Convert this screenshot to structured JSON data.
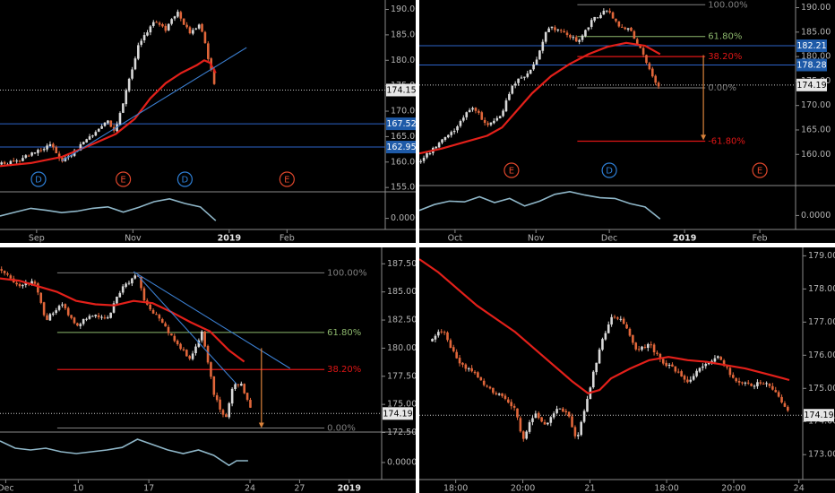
{
  "colors": {
    "background": "#000000",
    "candle_up": "#d9d9d9",
    "candle_down": "#e0663a",
    "ma": "#e3201a",
    "trendline": "#3b7fd1",
    "hline_blue": "#2c63c9",
    "hline_red": "#e01616",
    "fib_gray": "#7f7f7f",
    "fib_green": "#8db86d",
    "fib_red": "#e01616",
    "arrow": "#d9823b",
    "oscillator": "#8fb7c9",
    "axis_text": "#b3b3b3",
    "tag_blue": "#1e5aa8",
    "tag_gray": "#333333",
    "d_marker": "#2e7fd6",
    "e_marker": "#e0472c"
  },
  "chart_data": [
    {
      "panel": "top-left",
      "type": "candlestick",
      "x_tick_labels": [
        "Sep",
        "Nov",
        "2019",
        "Feb"
      ],
      "x_ticks": [
        0.095,
        0.345,
        0.595,
        0.745
      ],
      "y_axis": {
        "ylim": [
          154.5,
          191.5
        ],
        "tick_labels": [
          "155.00",
          "160.00",
          "165.00",
          "170.00",
          "175.00",
          "180.00",
          "185.00",
          "190.00"
        ],
        "ticks": [
          155,
          160,
          165,
          170,
          175,
          180,
          185,
          190
        ]
      },
      "candle_span": [
        0,
        0.56
      ],
      "close_path": [
        [
          0,
          159.5
        ],
        [
          0.05,
          160.5
        ],
        [
          0.09,
          162.0
        ],
        [
          0.13,
          163.5
        ],
        [
          0.16,
          160.0
        ],
        [
          0.2,
          162.5
        ],
        [
          0.24,
          165.5
        ],
        [
          0.28,
          168.0
        ],
        [
          0.3,
          166.0
        ],
        [
          0.33,
          175.0
        ],
        [
          0.36,
          183.0
        ],
        [
          0.4,
          187.5
        ],
        [
          0.43,
          186.0
        ],
        [
          0.46,
          189.5
        ],
        [
          0.49,
          185.5
        ],
        [
          0.52,
          187.0
        ],
        [
          0.545,
          179.0
        ],
        [
          0.56,
          174.2
        ]
      ],
      "ma": [
        [
          0,
          159.2
        ],
        [
          0.08,
          159.8
        ],
        [
          0.16,
          161.0
        ],
        [
          0.24,
          163.5
        ],
        [
          0.3,
          165.5
        ],
        [
          0.35,
          168.5
        ],
        [
          0.39,
          172.5
        ],
        [
          0.43,
          175.5
        ],
        [
          0.47,
          177.5
        ],
        [
          0.51,
          179.0
        ],
        [
          0.53,
          180.0
        ],
        [
          0.545,
          179.5
        ],
        [
          0.56,
          177.5
        ]
      ],
      "trendlines": [
        [
          [
            0.16,
            160.2
          ],
          [
            0.64,
            182.5
          ]
        ]
      ],
      "hlines": [
        {
          "value": 167.52,
          "label": "167.52",
          "style": "blue"
        },
        {
          "value": 162.95,
          "label": "162.95",
          "style": "blue"
        },
        {
          "value": 174.15,
          "label": "174.15",
          "style": "dotted"
        }
      ],
      "events": [
        {
          "x": 0.1,
          "label": "D",
          "kind": "dividend"
        },
        {
          "x": 0.32,
          "label": "E",
          "kind": "earnings"
        },
        {
          "x": 0.48,
          "label": "D",
          "kind": "dividend"
        },
        {
          "x": 0.745,
          "label": "E",
          "kind": "earnings"
        }
      ],
      "oscillator": {
        "value_label": "0.0000",
        "value": 0.0,
        "points": [
          [
            0,
            0.28
          ],
          [
            0.04,
            0.42
          ],
          [
            0.08,
            0.55
          ],
          [
            0.12,
            0.48
          ],
          [
            0.16,
            0.4
          ],
          [
            0.2,
            0.45
          ],
          [
            0.24,
            0.55
          ],
          [
            0.28,
            0.6
          ],
          [
            0.32,
            0.42
          ],
          [
            0.36,
            0.58
          ],
          [
            0.4,
            0.78
          ],
          [
            0.44,
            0.88
          ],
          [
            0.48,
            0.72
          ],
          [
            0.52,
            0.6
          ],
          [
            0.56,
            0.12
          ]
        ]
      }
    },
    {
      "panel": "top-right",
      "type": "candlestick",
      "x_tick_labels": [
        "Oct",
        "Nov",
        "Dec",
        "2019",
        "Feb"
      ],
      "x_ticks": [
        0.095,
        0.31,
        0.505,
        0.705,
        0.905
      ],
      "y_axis": {
        "ylim": [
          154.0,
          191.2
        ],
        "tick_labels": [
          "160.00",
          "165.00",
          "170.00",
          "175.00",
          "180.00",
          "185.00",
          "190.00"
        ],
        "ticks": [
          160,
          165,
          170,
          175,
          180,
          185,
          190
        ]
      },
      "candle_span": [
        0,
        0.64
      ],
      "close_path": [
        [
          0,
          158.5
        ],
        [
          0.05,
          162.0
        ],
        [
          0.1,
          165.5
        ],
        [
          0.14,
          170.0
        ],
        [
          0.18,
          166.0
        ],
        [
          0.22,
          168.5
        ],
        [
          0.25,
          174.5
        ],
        [
          0.28,
          176.0
        ],
        [
          0.31,
          179.0
        ],
        [
          0.34,
          186.0
        ],
        [
          0.38,
          185.5
        ],
        [
          0.42,
          183.0
        ],
        [
          0.46,
          187.5
        ],
        [
          0.5,
          189.5
        ],
        [
          0.53,
          186.5
        ],
        [
          0.56,
          185.5
        ],
        [
          0.6,
          179.5
        ],
        [
          0.63,
          174.2
        ]
      ],
      "ma": [
        [
          0,
          160.2
        ],
        [
          0.06,
          161.2
        ],
        [
          0.12,
          162.5
        ],
        [
          0.18,
          163.8
        ],
        [
          0.22,
          165.5
        ],
        [
          0.26,
          169.0
        ],
        [
          0.3,
          172.5
        ],
        [
          0.35,
          176.0
        ],
        [
          0.4,
          178.5
        ],
        [
          0.45,
          180.5
        ],
        [
          0.5,
          182.0
        ],
        [
          0.55,
          182.8
        ],
        [
          0.6,
          182.2
        ],
        [
          0.64,
          180.5
        ]
      ],
      "trendlines": [],
      "hlines": [
        {
          "value": 182.21,
          "label": "182.21",
          "style": "blue"
        },
        {
          "value": 178.28,
          "label": "178.28",
          "style": "blue"
        },
        {
          "value": 174.19,
          "label": "174.19",
          "style": "dotted"
        }
      ],
      "fib_levels": [
        {
          "value": 190.6,
          "label": "100.00%",
          "style": "gray"
        },
        {
          "value": 184.1,
          "label": "61.80%",
          "style": "green"
        },
        {
          "value": 180.0,
          "label": "38.20%",
          "style": "red"
        },
        {
          "value": 173.6,
          "label": "0.00%",
          "style": "gray"
        },
        {
          "value": 162.7,
          "label": "-61.80%",
          "style": "red"
        }
      ],
      "projection_arrow": {
        "from": 180.3,
        "to": 162.9
      },
      "events": [
        {
          "x": 0.245,
          "label": "E",
          "kind": "earnings"
        },
        {
          "x": 0.505,
          "label": "D",
          "kind": "dividend"
        },
        {
          "x": 0.905,
          "label": "E",
          "kind": "earnings"
        }
      ],
      "oscillator": {
        "value_label": "0.0000",
        "value": 0.0,
        "points": [
          [
            0,
            0.35
          ],
          [
            0.04,
            0.52
          ],
          [
            0.08,
            0.62
          ],
          [
            0.12,
            0.6
          ],
          [
            0.16,
            0.75
          ],
          [
            0.2,
            0.58
          ],
          [
            0.24,
            0.7
          ],
          [
            0.28,
            0.48
          ],
          [
            0.32,
            0.62
          ],
          [
            0.36,
            0.82
          ],
          [
            0.4,
            0.9
          ],
          [
            0.44,
            0.8
          ],
          [
            0.48,
            0.72
          ],
          [
            0.52,
            0.7
          ],
          [
            0.56,
            0.55
          ],
          [
            0.6,
            0.45
          ],
          [
            0.64,
            0.1
          ]
        ]
      }
    },
    {
      "panel": "bottom-left",
      "type": "candlestick",
      "x_tick_labels": [
        "Dec",
        "10",
        "17",
        "24",
        "27",
        "2019"
      ],
      "x_ticks": [
        0.015,
        0.205,
        0.39,
        0.655,
        0.785,
        0.915
      ],
      "y_axis": {
        "ylim": [
          172.7,
          188.8
        ],
        "tick_labels": [
          "172.50",
          "175.00",
          "177.50",
          "180.00",
          "182.50",
          "185.00",
          "187.50"
        ],
        "ticks": [
          172.5,
          175.0,
          177.5,
          180.0,
          182.5,
          185.0,
          187.5
        ]
      },
      "candle_span": [
        0,
        0.66
      ],
      "close_path": [
        [
          0,
          187.0
        ],
        [
          0.05,
          185.5
        ],
        [
          0.09,
          186.0
        ],
        [
          0.12,
          182.5
        ],
        [
          0.16,
          184.0
        ],
        [
          0.2,
          182.0
        ],
        [
          0.24,
          183.0
        ],
        [
          0.28,
          182.5
        ],
        [
          0.32,
          185.5
        ],
        [
          0.36,
          186.5
        ],
        [
          0.38,
          184.0
        ],
        [
          0.42,
          182.5
        ],
        [
          0.46,
          180.5
        ],
        [
          0.5,
          179.0
        ],
        [
          0.53,
          181.5
        ],
        [
          0.56,
          176.0
        ],
        [
          0.59,
          173.5
        ],
        [
          0.61,
          176.5
        ],
        [
          0.63,
          177.0
        ],
        [
          0.66,
          174.2
        ]
      ],
      "ma": [
        [
          0,
          186.2
        ],
        [
          0.05,
          186.0
        ],
        [
          0.1,
          185.5
        ],
        [
          0.15,
          185.0
        ],
        [
          0.2,
          184.2
        ],
        [
          0.25,
          183.9
        ],
        [
          0.3,
          183.8
        ],
        [
          0.35,
          184.2
        ],
        [
          0.4,
          184.0
        ],
        [
          0.45,
          183.2
        ],
        [
          0.5,
          182.3
        ],
        [
          0.55,
          181.5
        ],
        [
          0.6,
          179.8
        ],
        [
          0.64,
          178.8
        ]
      ],
      "trendlines": [
        [
          [
            0.35,
            186.8
          ],
          [
            0.76,
            178.2
          ]
        ],
        [
          [
            0.36,
            186.5
          ],
          [
            0.62,
            176.8
          ]
        ]
      ],
      "hlines": [
        {
          "value": 174.19,
          "label": "174.19",
          "style": "dotted"
        }
      ],
      "fib_levels": [
        {
          "value": 186.7,
          "label": "100.00%",
          "style": "gray"
        },
        {
          "value": 181.4,
          "label": "61.80%",
          "style": "green"
        },
        {
          "value": 178.1,
          "label": "38.20%",
          "style": "red"
        },
        {
          "value": 172.9,
          "label": "0.00%",
          "style": "gray"
        }
      ],
      "projection_arrow": {
        "from": 180.0,
        "to": 172.9
      },
      "events": [],
      "oscillator": {
        "value_label": "0.0000",
        "value": 0.0,
        "points": [
          [
            0,
            0.8
          ],
          [
            0.04,
            0.6
          ],
          [
            0.08,
            0.55
          ],
          [
            0.12,
            0.6
          ],
          [
            0.16,
            0.5
          ],
          [
            0.2,
            0.45
          ],
          [
            0.24,
            0.5
          ],
          [
            0.28,
            0.55
          ],
          [
            0.32,
            0.62
          ],
          [
            0.36,
            0.85
          ],
          [
            0.4,
            0.7
          ],
          [
            0.44,
            0.55
          ],
          [
            0.48,
            0.45
          ],
          [
            0.52,
            0.55
          ],
          [
            0.56,
            0.4
          ],
          [
            0.6,
            0.12
          ],
          [
            0.62,
            0.25
          ],
          [
            0.65,
            0.25
          ]
        ]
      }
    },
    {
      "panel": "bottom-right",
      "type": "candlestick",
      "x_tick_labels": [
        "18:00",
        "20:00",
        "21",
        "18:00",
        "20:00",
        "24"
      ],
      "x_ticks": [
        0.095,
        0.27,
        0.445,
        0.645,
        0.82,
        0.99
      ],
      "y_axis": {
        "ylim": [
          172.6,
          179.2
        ],
        "tick_labels": [
          "173.00",
          "174.00",
          "175.00",
          "176.00",
          "177.00",
          "178.00",
          "179.00"
        ],
        "ticks": [
          173,
          174,
          175,
          176,
          177,
          178,
          179
        ]
      },
      "candle_span": [
        0.03,
        0.965
      ],
      "close_path": [
        [
          0.03,
          176.4
        ],
        [
          0.06,
          176.8
        ],
        [
          0.1,
          175.8
        ],
        [
          0.14,
          175.5
        ],
        [
          0.18,
          175.0
        ],
        [
          0.22,
          174.7
        ],
        [
          0.25,
          174.4
        ],
        [
          0.27,
          173.4
        ],
        [
          0.3,
          174.3
        ],
        [
          0.33,
          173.9
        ],
        [
          0.36,
          174.4
        ],
        [
          0.39,
          174.2
        ],
        [
          0.41,
          173.4
        ],
        [
          0.44,
          174.8
        ],
        [
          0.47,
          176.2
        ],
        [
          0.5,
          177.2
        ],
        [
          0.53,
          177.0
        ],
        [
          0.57,
          176.1
        ],
        [
          0.6,
          176.4
        ],
        [
          0.63,
          175.8
        ],
        [
          0.66,
          175.6
        ],
        [
          0.7,
          175.2
        ],
        [
          0.74,
          175.7
        ],
        [
          0.78,
          176.0
        ],
        [
          0.82,
          175.3
        ],
        [
          0.86,
          175.1
        ],
        [
          0.9,
          175.2
        ],
        [
          0.93,
          174.9
        ],
        [
          0.965,
          174.2
        ]
      ],
      "ma": [
        [
          0.0,
          178.9
        ],
        [
          0.05,
          178.5
        ],
        [
          0.1,
          178.0
        ],
        [
          0.15,
          177.5
        ],
        [
          0.2,
          177.1
        ],
        [
          0.25,
          176.7
        ],
        [
          0.3,
          176.2
        ],
        [
          0.35,
          175.7
        ],
        [
          0.4,
          175.2
        ],
        [
          0.44,
          174.85
        ],
        [
          0.47,
          174.95
        ],
        [
          0.5,
          175.3
        ],
        [
          0.55,
          175.6
        ],
        [
          0.6,
          175.85
        ],
        [
          0.65,
          175.95
        ],
        [
          0.7,
          175.85
        ],
        [
          0.75,
          175.8
        ],
        [
          0.8,
          175.7
        ],
        [
          0.85,
          175.6
        ],
        [
          0.9,
          175.45
        ],
        [
          0.95,
          175.3
        ],
        [
          0.965,
          175.25
        ]
      ],
      "trendlines": [],
      "hlines": [
        {
          "value": 174.19,
          "label": "174.19",
          "style": "dotted"
        }
      ],
      "events": []
    }
  ]
}
